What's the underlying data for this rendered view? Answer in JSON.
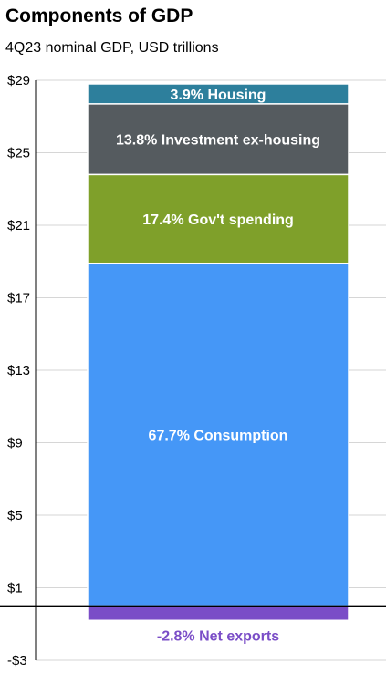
{
  "title": "Components of GDP",
  "subtitle": "4Q23 nominal GDP, USD trillions",
  "chart_data": {
    "type": "bar",
    "stacked": true,
    "categories": [
      "4Q23"
    ],
    "ylim": [
      -3,
      29
    ],
    "yticks": [
      29,
      25,
      21,
      17,
      13,
      9,
      5,
      1,
      -3
    ],
    "ytick_labels": [
      "$29",
      "$25",
      "$21",
      "$17",
      "$13",
      "$9",
      "$5",
      "$1",
      "-$3"
    ],
    "grid": true,
    "series": [
      {
        "label": "-2.8% Net exports",
        "start": 0.0,
        "end": -0.8,
        "color": "#7a4dc7",
        "label_color": "#7a4dc7",
        "label_position": "below"
      },
      {
        "label": "67.7% Consumption",
        "start": 0.0,
        "end": 18.9,
        "color": "#4597f7",
        "label_color": "#ffffff",
        "label_position": "inside"
      },
      {
        "label": "17.4% Gov't  spending",
        "start": 18.9,
        "end": 23.8,
        "color": "#7fa02a",
        "label_color": "#ffffff",
        "label_position": "inside"
      },
      {
        "label": "13.8% Investment ex-housing",
        "start": 23.8,
        "end": 27.7,
        "color": "#555b5f",
        "label_color": "#ffffff",
        "label_position": "inside"
      },
      {
        "label": "3.9% Housing",
        "start": 27.7,
        "end": 28.8,
        "color": "#2d7f9c",
        "label_color": "#ffffff",
        "label_position": "inside"
      }
    ]
  }
}
